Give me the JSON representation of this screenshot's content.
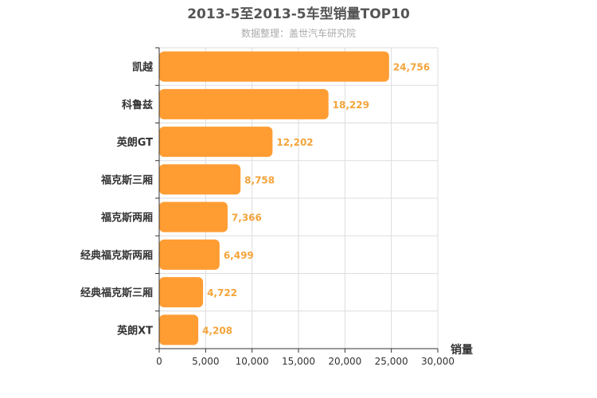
{
  "chart_data": {
    "type": "bar",
    "orientation": "horizontal",
    "title": "2013-5至2013-5车型销量TOP10",
    "subtitle": "数据整理：盖世汽车研究院",
    "xlabel": "销量",
    "ylabel": "",
    "categories": [
      "凯越",
      "科鲁兹",
      "英朗GT",
      "福克斯三厢",
      "福克斯两厢",
      "经典福克斯两厢",
      "经典福克斯三厢",
      "英朗XT"
    ],
    "values": [
      24756,
      18229,
      12202,
      8758,
      7366,
      6499,
      4722,
      4208
    ],
    "value_labels": [
      "24,756",
      "18,229",
      "12,202",
      "8,758",
      "7,366",
      "6,499",
      "4,722",
      "4,208"
    ],
    "xlim": [
      0,
      30000
    ],
    "ticks": [
      0,
      5000,
      10000,
      15000,
      20000,
      25000,
      30000
    ],
    "tick_labels": [
      "0",
      "5,000",
      "10,000",
      "15,000",
      "20,000",
      "25,000",
      "30,000"
    ],
    "grid": true,
    "legend": "none",
    "colors": {
      "bar": "#ff9d33",
      "value_label": "#f3a43b",
      "grid": "#dddddd",
      "axis": "#333333"
    }
  }
}
